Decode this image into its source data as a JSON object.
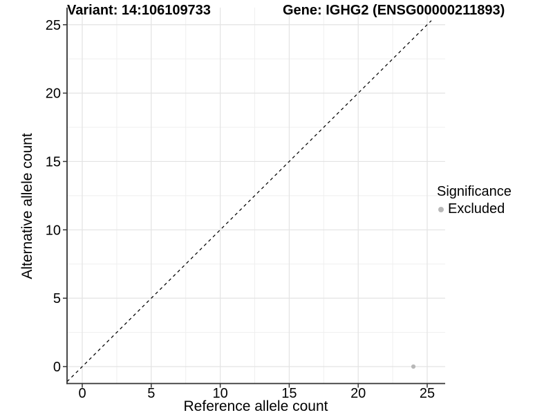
{
  "chart_data": {
    "type": "scatter",
    "title_left": "Variant: 14:106109733",
    "title_right": "Gene: IGHG2 (ENSG00000211893)",
    "xlabel": "Reference allele count",
    "ylabel": "Alternative allele count",
    "x_ticks": [
      0,
      5,
      10,
      15,
      20,
      25
    ],
    "y_ticks": [
      0,
      5,
      10,
      15,
      20,
      25
    ],
    "x_minor_ticks": [
      2.5,
      7.5,
      12.5,
      17.5,
      22.5
    ],
    "y_minor_ticks": [
      2.5,
      7.5,
      12.5,
      17.5,
      22.5
    ],
    "xlim": [
      -1.1,
      26.25
    ],
    "ylim": [
      -1.2,
      26.25
    ],
    "grid": true,
    "background": "#ffffff",
    "identity_line": {
      "slope": 1,
      "intercept": 0,
      "style": "dashed",
      "span": [
        -1.1,
        25.3
      ]
    },
    "series": [
      {
        "name": "Excluded",
        "color": "#b8b8b8",
        "points": [
          {
            "x": 24,
            "y": 0
          }
        ]
      }
    ],
    "legend": {
      "title": "Significance",
      "position": "right",
      "items": [
        {
          "label": "Excluded",
          "color": "#b8b8b8"
        }
      ]
    },
    "colors": {
      "grid_major": "#e3e3e3",
      "grid_minor": "#efefef",
      "axis_line": "#333333",
      "tick_mark": "#333333",
      "text": "#000000",
      "identity_line": "#000000"
    }
  }
}
